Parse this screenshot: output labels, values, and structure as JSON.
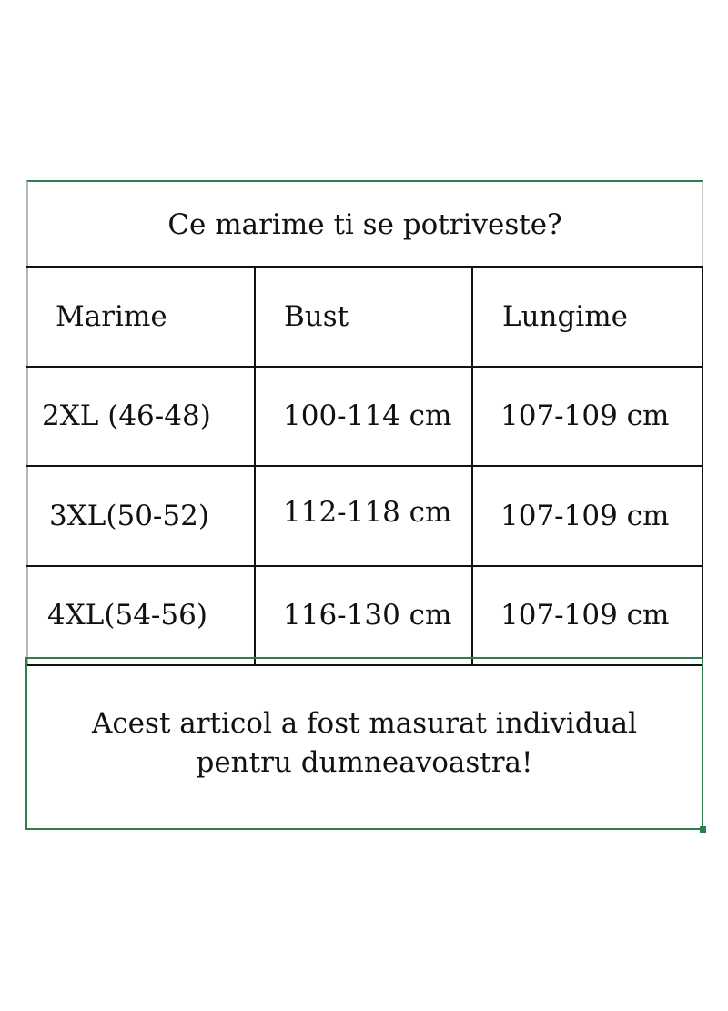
{
  "title": "Ce marime ti se potriveste?",
  "headers": [
    "Marime",
    "Bust",
    "Lungime"
  ],
  "rows": [
    [
      "2XL (46-48)",
      "100-114 cm",
      "107-109 cm"
    ],
    [
      "3XL(50-52)",
      "112-118 cm",
      "107-109 cm"
    ],
    [
      "4XL(54-56)",
      "116-130 cm",
      "107-109 cm"
    ]
  ],
  "note": {
    "line1": "Acest articol a fost masurat individual",
    "line2": "pentru dumneavoastra!"
  },
  "colors": {
    "selection": "#2e7d4f",
    "grid": "#111111"
  }
}
